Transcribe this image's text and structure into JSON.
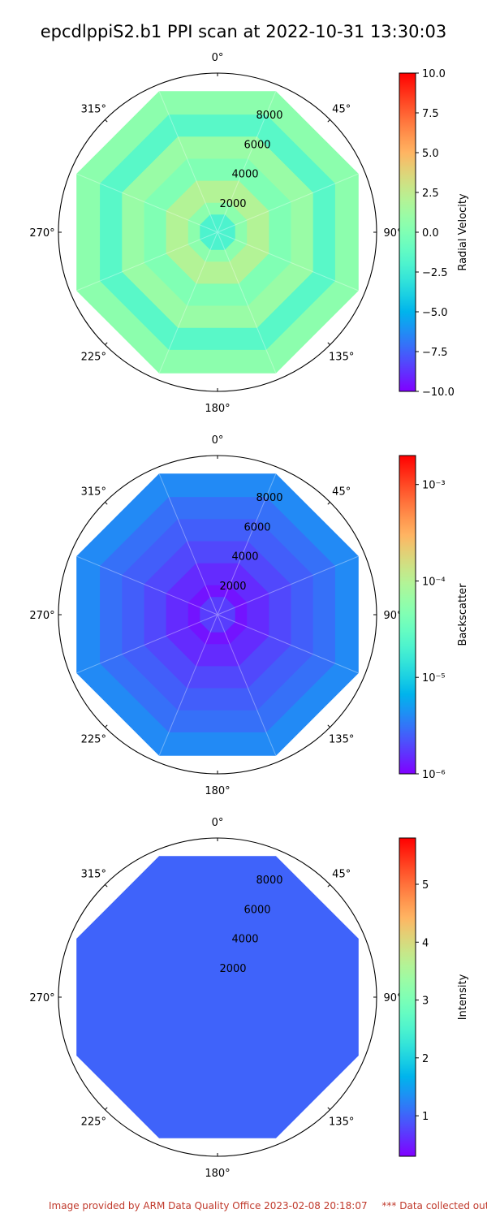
{
  "title": "epcdlppiS2.b1 PPI scan at 2022-10-31 13:30:03",
  "footer": {
    "provided_by": "Image provided by ARM Data Quality Office 2023-02-08 20:18:07",
    "note": "*** Data collected outsid"
  },
  "chart_data": [
    {
      "type": "polar",
      "title": "",
      "angle_ticks": [
        "0°",
        "45°",
        "90°",
        "135°",
        "180°",
        "225°",
        "270°",
        "315°"
      ],
      "radial_ticks": [
        2000,
        4000,
        6000,
        8000
      ],
      "colorbar": {
        "label": "Radial Velocity",
        "scale": "linear",
        "range": [
          -10.0,
          10.0
        ],
        "ticks": [
          "10.0",
          "7.5",
          "5.0",
          "2.5",
          "0.0",
          "−2.5",
          "−5.0",
          "−7.5",
          "−10.0"
        ],
        "colormap": "rainbow"
      },
      "rings": [
        {
          "outer_range": 9600,
          "dominant_value": 0.5
        },
        {
          "outer_range": 8000,
          "dominant_value": -1.5
        },
        {
          "outer_range": 6500,
          "dominant_value": 1.0
        },
        {
          "outer_range": 5000,
          "dominant_value": 0.0
        },
        {
          "outer_range": 3500,
          "dominant_value": 2.0
        },
        {
          "outer_range": 2000,
          "dominant_value": 0.5
        },
        {
          "outer_range": 1200,
          "dominant_value": -2.0
        }
      ]
    },
    {
      "type": "polar",
      "title": "",
      "angle_ticks": [
        "0°",
        "45°",
        "90°",
        "135°",
        "180°",
        "225°",
        "270°",
        "315°"
      ],
      "radial_ticks": [
        2000,
        4000,
        6000,
        8000
      ],
      "colorbar": {
        "label": "Backscatter",
        "scale": "log",
        "range": [
          1e-06,
          0.002
        ],
        "ticks": [
          "10⁻³",
          "10⁻⁴",
          "10⁻⁵",
          "10⁻⁶"
        ],
        "colormap": "rainbow"
      },
      "rings": [
        {
          "outer_range": 9600,
          "dominant_value": 4e-06
        },
        {
          "outer_range": 8000,
          "dominant_value": 3e-06
        },
        {
          "outer_range": 6500,
          "dominant_value": 2.5e-06
        },
        {
          "outer_range": 5000,
          "dominant_value": 2e-06
        },
        {
          "outer_range": 3500,
          "dominant_value": 1.5e-06
        },
        {
          "outer_range": 2000,
          "dominant_value": 1.2e-06
        },
        {
          "outer_range": 1200,
          "dominant_value": 1.8e-06
        }
      ]
    },
    {
      "type": "polar",
      "title": "",
      "angle_ticks": [
        "0°",
        "45°",
        "90°",
        "135°",
        "180°",
        "225°",
        "270°",
        "315°"
      ],
      "radial_ticks": [
        2000,
        4000,
        6000,
        8000
      ],
      "colorbar": {
        "label": "Intensity",
        "scale": "linear",
        "range": [
          0.3,
          5.8
        ],
        "ticks": [
          "5",
          "4",
          "3",
          "2",
          "1"
        ],
        "colormap": "rainbow"
      },
      "rings": [
        {
          "outer_range": 9600,
          "dominant_value": 1.0
        }
      ]
    }
  ]
}
